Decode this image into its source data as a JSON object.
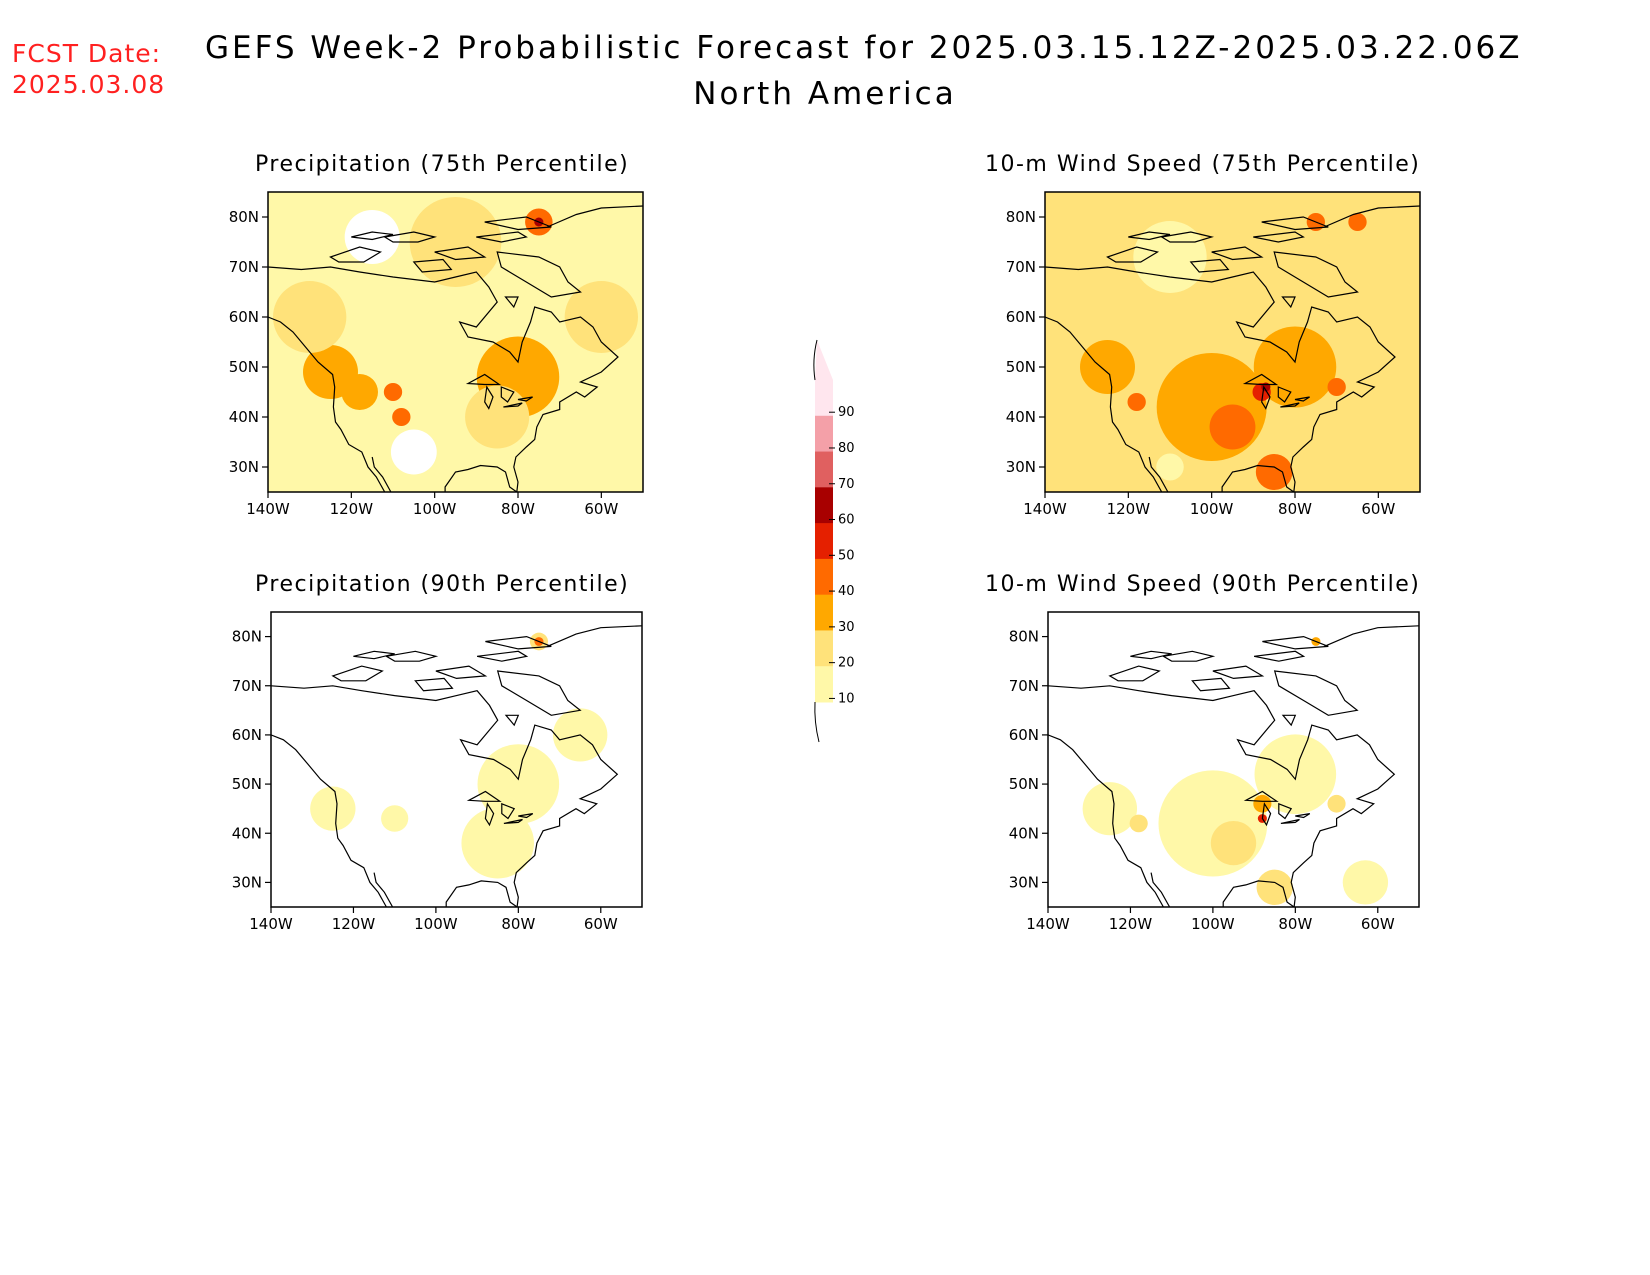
{
  "header": {
    "fcst_label": "FCST Date:",
    "fcst_date": "2025.03.08",
    "title": "GEFS Week-2 Probabilistic Forecast for 2025.03.15.12Z-2025.03.22.06Z",
    "subtitle": "North America"
  },
  "colors": {
    "c10": "#fff8a8",
    "c20": "#ffe27a",
    "c30": "#ffa800",
    "c40": "#ff6a00",
    "c50": "#e52000",
    "c60": "#a80000",
    "c70": "#e06060",
    "c80": "#f4a0a8",
    "c90": "#ffe6ee"
  },
  "colorbar": {
    "levels": [
      "10",
      "20",
      "30",
      "40",
      "50",
      "60",
      "70",
      "80",
      "90"
    ]
  },
  "axes": {
    "lat_labels": [
      "80N",
      "70N",
      "60N",
      "50N",
      "40N",
      "30N"
    ],
    "lon_labels": [
      "140W",
      "120W",
      "100W",
      "80W",
      "60W"
    ]
  },
  "panels": [
    {
      "id": "precip75",
      "title": "Precipitation (75th Percentile)",
      "base": "c10",
      "blobs": [
        {
          "lon": -125,
          "lat": 49,
          "r": 6,
          "level": "c30"
        },
        {
          "lon": -80,
          "lat": 48,
          "r": 9,
          "level": "c30"
        },
        {
          "lon": -118,
          "lat": 45,
          "r": 4,
          "level": "c30"
        },
        {
          "lon": -110,
          "lat": 45,
          "r": 2,
          "level": "c40"
        },
        {
          "lon": -108,
          "lat": 40,
          "r": 2,
          "level": "c40"
        },
        {
          "lon": -75,
          "lat": 79,
          "r": 3,
          "level": "c40"
        },
        {
          "lon": -75,
          "lat": 79,
          "r": 1,
          "level": "c60"
        },
        {
          "lon": -85,
          "lat": 40,
          "r": 7,
          "level": "c20"
        },
        {
          "lon": -130,
          "lat": 60,
          "r": 8,
          "level": "c20"
        },
        {
          "lon": -60,
          "lat": 60,
          "r": 8,
          "level": "c20"
        },
        {
          "lon": -95,
          "lat": 75,
          "r": 10,
          "level": "c20"
        },
        {
          "lon": -105,
          "lat": 33,
          "r": 5,
          "level": "white"
        },
        {
          "lon": -115,
          "lat": 76,
          "r": 6,
          "level": "white"
        }
      ]
    },
    {
      "id": "wind75",
      "title": "10-m Wind Speed (75th Percentile)",
      "base": "c20",
      "blobs": [
        {
          "lon": -100,
          "lat": 42,
          "r": 12,
          "level": "c30"
        },
        {
          "lon": -80,
          "lat": 50,
          "r": 9,
          "level": "c30"
        },
        {
          "lon": -125,
          "lat": 50,
          "r": 6,
          "level": "c30"
        },
        {
          "lon": -95,
          "lat": 38,
          "r": 5,
          "level": "c40"
        },
        {
          "lon": -88,
          "lat": 45,
          "r": 2,
          "level": "c50"
        },
        {
          "lon": -87,
          "lat": 46,
          "r": 1,
          "level": "c60"
        },
        {
          "lon": -70,
          "lat": 46,
          "r": 2,
          "level": "c40"
        },
        {
          "lon": -75,
          "lat": 79,
          "r": 2,
          "level": "c40"
        },
        {
          "lon": -65,
          "lat": 79,
          "r": 2,
          "level": "c40"
        },
        {
          "lon": -118,
          "lat": 43,
          "r": 2,
          "level": "c40"
        },
        {
          "lon": -85,
          "lat": 29,
          "r": 4,
          "level": "c40"
        },
        {
          "lon": -110,
          "lat": 72,
          "r": 8,
          "level": "c10"
        },
        {
          "lon": -110,
          "lat": 30,
          "r": 3,
          "level": "c10"
        }
      ]
    },
    {
      "id": "precip90",
      "title": "Precipitation (90th Percentile)",
      "base": "white",
      "blobs": [
        {
          "lon": -80,
          "lat": 50,
          "r": 9,
          "level": "c10"
        },
        {
          "lon": -85,
          "lat": 38,
          "r": 8,
          "level": "c10"
        },
        {
          "lon": -125,
          "lat": 45,
          "r": 5,
          "level": "c10"
        },
        {
          "lon": -65,
          "lat": 60,
          "r": 6,
          "level": "c10"
        },
        {
          "lon": -110,
          "lat": 43,
          "r": 3,
          "level": "c10"
        },
        {
          "lon": -75,
          "lat": 79,
          "r": 2,
          "level": "c20"
        },
        {
          "lon": -75,
          "lat": 79,
          "r": 1,
          "level": "c40"
        }
      ]
    },
    {
      "id": "wind90",
      "title": "10-m Wind Speed (90th Percentile)",
      "base": "white",
      "blobs": [
        {
          "lon": -100,
          "lat": 42,
          "r": 12,
          "level": "c10"
        },
        {
          "lon": -80,
          "lat": 52,
          "r": 9,
          "level": "c10"
        },
        {
          "lon": -125,
          "lat": 45,
          "r": 6,
          "level": "c10"
        },
        {
          "lon": -95,
          "lat": 38,
          "r": 5,
          "level": "c20"
        },
        {
          "lon": -88,
          "lat": 46,
          "r": 2,
          "level": "c30"
        },
        {
          "lon": -88,
          "lat": 43,
          "r": 1,
          "level": "c50"
        },
        {
          "lon": -75,
          "lat": 79,
          "r": 1,
          "level": "c30"
        },
        {
          "lon": -70,
          "lat": 46,
          "r": 2,
          "level": "c20"
        },
        {
          "lon": -118,
          "lat": 42,
          "r": 2,
          "level": "c20"
        },
        {
          "lon": -85,
          "lat": 29,
          "r": 4,
          "level": "c20"
        },
        {
          "lon": -63,
          "lat": 30,
          "r": 5,
          "level": "c10"
        }
      ]
    }
  ]
}
